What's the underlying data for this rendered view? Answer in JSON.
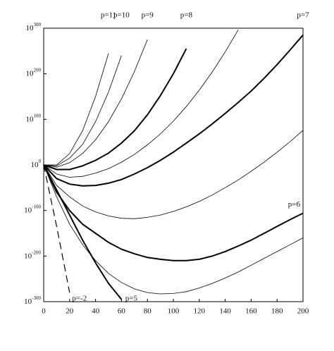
{
  "chart_data": {
    "type": "line",
    "log_y": true,
    "color": "#000000",
    "xlim": [
      0,
      200
    ],
    "xticks": [
      0,
      20,
      40,
      60,
      80,
      100,
      120,
      140,
      160,
      180,
      200
    ],
    "ylim": [
      1e-300,
      1e+300
    ],
    "yticks": [
      {
        "value": 1e-300,
        "label": "10^-300"
      },
      {
        "value": 1e-200,
        "label": "10^-200"
      },
      {
        "value": 1e-100,
        "label": "10^-100"
      },
      {
        "value": 1,
        "label": "10^0"
      },
      {
        "value": 1e+100,
        "label": "10^100"
      },
      {
        "value": 1e+200,
        "label": "10^200"
      },
      {
        "value": 1e+300,
        "label": "10^300"
      }
    ],
    "x": [
      0,
      10,
      20,
      30,
      40,
      50,
      60,
      70,
      80,
      90,
      100,
      110,
      120,
      130,
      140,
      150,
      160,
      170,
      180,
      190,
      200
    ],
    "series": [
      {
        "name": "p=11",
        "linewidth": 0.8,
        "values": [
          1,
          1,
          1e+25,
          1e+75,
          1e+150,
          1e+245,
          null,
          null,
          null,
          null,
          null,
          null,
          null,
          null,
          null,
          null,
          null,
          null,
          null,
          null,
          null
        ]
      },
      {
        "name": "p=10",
        "linewidth": 0.8,
        "values": [
          1,
          0.01,
          1000000000000000.0,
          1e+45,
          1e+95,
          1e+160,
          1e+240,
          null,
          null,
          null,
          null,
          null,
          null,
          null,
          null,
          null,
          null,
          null,
          null,
          null,
          null
        ]
      },
      {
        "name": "p=9",
        "linewidth": 0.8,
        "values": [
          1,
          1e-05,
          100000.0,
          1e+25,
          1e+55,
          1e+95,
          1e+145,
          1e+205,
          1e+275,
          null,
          null,
          null,
          null,
          null,
          null,
          null,
          null,
          null,
          null,
          null,
          null
        ]
      },
      {
        "name": "p=8",
        "linewidth": 2,
        "values": [
          1,
          1e-10,
          1e-10,
          0.01,
          10000000000.0,
          1e+26,
          1e+48,
          1e+75,
          1e+110,
          1e+152,
          1e+200,
          1e+255,
          null,
          null,
          null,
          null,
          null,
          null,
          null,
          null,
          null
        ]
      },
      {
        "linewidth": 0.8,
        "values": [
          1,
          1e-20,
          1e-27,
          1e-25,
          1e-18,
          1e-08,
          1000000.0,
          1e+23,
          1e+44,
          1e+68,
          1e+96,
          1e+128,
          1e+164,
          1e+204,
          1e+248,
          1e+296,
          null,
          null,
          null,
          null,
          null
        ]
      },
      {
        "name": "p=7",
        "linewidth": 2,
        "values": [
          1,
          1e-30,
          1e-42,
          1e-46,
          1e-45,
          1e-40,
          1e-32,
          1e-20,
          1e-06,
          10000000000.0,
          1e+28,
          1e+48,
          1e+68,
          1e+90,
          1e+113,
          1e+137,
          1e+162,
          1e+190,
          1e+220,
          1e+252,
          1e+285
        ]
      },
      {
        "linewidth": 0.8,
        "values": [
          1,
          1e-45,
          1e-70,
          1e-90,
          1e-103,
          1e-112,
          1e-117,
          1e-118,
          1e-115,
          1e-110,
          1e-102,
          1e-92,
          1e-80,
          1e-66,
          1e-50,
          1e-33,
          1e-14,
          1000000.0,
          1e+28,
          1e+51,
          1e+76
        ]
      },
      {
        "name": "p=6",
        "linewidth": 2,
        "values": [
          1,
          1e-60,
          1e-100,
          1e-130,
          1e-150,
          1e-170,
          1e-185,
          1e-195,
          1e-203,
          1e-207,
          1e-210,
          1e-210,
          1e-207,
          1e-200,
          1e-190,
          1e-178,
          1e-165,
          1e-150,
          1e-135,
          1e-120,
          1e-106
        ]
      },
      {
        "linewidth": 0.8,
        "values": [
          1,
          1e-70,
          1e-130,
          1e-175,
          1e-210,
          1e-238,
          1e-258,
          1e-272,
          1e-280,
          1e-283,
          1e-282,
          1e-278,
          1e-270,
          1e-260,
          1e-248,
          1e-235,
          1e-220,
          1e-205,
          1e-190,
          1e-175,
          1e-160
        ]
      },
      {
        "name": "p=5",
        "linewidth": 2,
        "values": [
          1,
          1e-55,
          1e-110,
          1e-165,
          1e-215,
          1e-260,
          1e-295,
          null,
          null,
          null,
          null,
          null,
          null,
          null,
          null,
          null,
          null,
          null,
          null,
          null,
          null
        ]
      },
      {
        "name": "p=-2",
        "linewidth": 1.2,
        "dashed": true,
        "values": [
          1,
          1e-135,
          1e-280,
          null,
          null,
          null,
          null,
          null,
          null,
          null,
          null,
          null,
          null,
          null,
          null,
          null,
          null,
          null,
          null,
          null,
          null
        ]
      }
    ]
  }
}
